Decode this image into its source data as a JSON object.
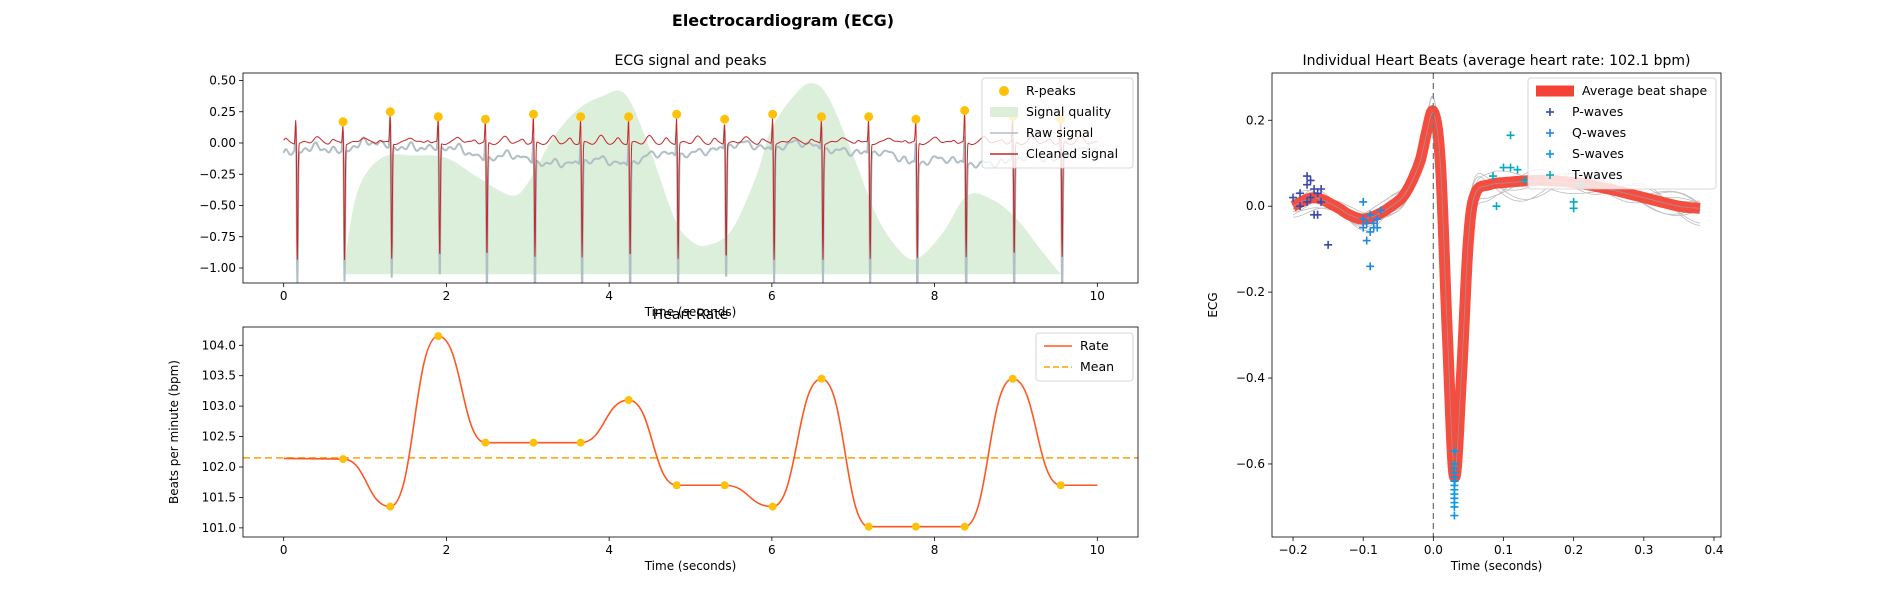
{
  "figure_title": "Electrocardiogram (ECG)",
  "colors": {
    "rpeak": "#FFC107",
    "quality": "#DCEFDB",
    "raw": "#B0BEC5",
    "cleaned": "#C62828",
    "rate": "#FF5722",
    "mean": "#FFA000",
    "avg_beat": "#F44336",
    "p_wave": "#3949AB",
    "q_wave": "#1E88E5",
    "s_wave": "#039BE5",
    "t_wave": "#00ACC1",
    "beat_trace": "#BDBDBD"
  },
  "chart_data": [
    {
      "id": "ecg",
      "type": "line",
      "title": "ECG signal and peaks",
      "xlabel": "Time (seconds)",
      "ylabel": "",
      "xlim": [
        -0.5,
        10.5
      ],
      "ylim": [
        -1.12,
        0.56
      ],
      "xticks": [
        0,
        2,
        4,
        6,
        8,
        10
      ],
      "yticks": [
        -1.0,
        -0.75,
        -0.5,
        -0.25,
        0.0,
        0.25,
        0.5
      ],
      "ytick_labels": [
        "−1.00",
        "−0.75",
        "−0.50",
        "−0.25",
        "0.00",
        "0.25",
        "0.50"
      ],
      "legend": [
        "R-peaks",
        "Signal quality",
        "Raw signal",
        "Cleaned signal"
      ],
      "legend_position": "upper right",
      "r_peak_times": [
        0.73,
        1.31,
        1.9,
        2.48,
        3.07,
        3.65,
        4.24,
        4.83,
        5.42,
        6.01,
        6.61,
        7.19,
        7.77,
        8.37,
        8.96,
        9.55
      ],
      "r_peak_amplitudes": [
        0.17,
        0.25,
        0.21,
        0.19,
        0.23,
        0.21,
        0.21,
        0.23,
        0.19,
        0.23,
        0.21,
        0.21,
        0.19,
        0.26,
        0.21,
        0.19
      ],
      "quality_curve": {
        "x": [
          0.73,
          0.9,
          1.2,
          1.6,
          2.0,
          2.4,
          2.8,
          3.0,
          3.3,
          3.6,
          3.9,
          4.2,
          4.5,
          4.8,
          5.0,
          5.2,
          5.5,
          5.8,
          6.0,
          6.3,
          6.5,
          6.7,
          7.0,
          7.3,
          7.6,
          7.8,
          8.1,
          8.4,
          8.7,
          9.0,
          9.3,
          9.55
        ],
        "y": [
          -1.05,
          -0.4,
          -0.12,
          -0.1,
          -0.12,
          -0.28,
          -0.42,
          -0.32,
          0.03,
          0.26,
          0.37,
          0.39,
          -0.05,
          -0.6,
          -0.78,
          -0.82,
          -0.7,
          -0.28,
          0.12,
          0.4,
          0.48,
          0.36,
          -0.1,
          -0.6,
          -0.88,
          -0.92,
          -0.72,
          -0.42,
          -0.45,
          -0.6,
          -0.85,
          -1.05
        ]
      }
    },
    {
      "id": "rate",
      "type": "line",
      "title": "Heart Rate",
      "xlabel": "Time (seconds)",
      "ylabel": "Beats per minute (bpm)",
      "xlim": [
        -0.5,
        10.5
      ],
      "ylim": [
        100.85,
        104.3
      ],
      "xticks": [
        0,
        2,
        4,
        6,
        8,
        10
      ],
      "yticks": [
        101.0,
        101.5,
        102.0,
        102.5,
        103.0,
        103.5,
        104.0
      ],
      "ytick_labels": [
        "101.0",
        "101.5",
        "102.0",
        "102.5",
        "103.0",
        "103.5",
        "104.0"
      ],
      "legend": [
        "Rate",
        "Mean"
      ],
      "legend_position": "upper right",
      "mean": 102.15,
      "start": {
        "x": 0,
        "y": 102.14
      },
      "end": {
        "x": 10,
        "y": 101.7
      },
      "points": {
        "x": [
          0.73,
          1.31,
          1.9,
          2.48,
          3.07,
          3.65,
          4.24,
          4.83,
          5.42,
          6.01,
          6.61,
          7.19,
          7.77,
          8.37,
          8.96,
          9.55
        ],
        "y": [
          102.13,
          101.35,
          104.15,
          102.4,
          102.4,
          102.4,
          103.1,
          101.7,
          101.7,
          101.35,
          103.45,
          101.02,
          101.02,
          101.02,
          103.45,
          101.7
        ]
      }
    },
    {
      "id": "beats",
      "type": "line",
      "title": "Individual Heart Beats (average heart rate: 102.1 bpm)",
      "xlabel": "Time (seconds)",
      "ylabel": "ECG",
      "xlim": [
        -0.23,
        0.41
      ],
      "ylim": [
        -0.77,
        0.31
      ],
      "xticks": [
        -0.2,
        -0.1,
        0.0,
        0.1,
        0.2,
        0.3,
        0.4
      ],
      "xtick_labels": [
        "−0.2",
        "−0.1",
        "0.0",
        "0.1",
        "0.2",
        "0.3",
        "0.4"
      ],
      "yticks": [
        -0.6,
        -0.4,
        -0.2,
        0.0,
        0.2
      ],
      "ytick_labels": [
        "−0.6",
        "−0.4",
        "−0.2",
        "0.0",
        "0.2"
      ],
      "legend": [
        "Average beat shape",
        "P-waves",
        "Q-waves",
        "S-waves",
        "T-waves"
      ],
      "legend_position": "upper right",
      "average_beat": {
        "x": [
          -0.2,
          -0.17,
          -0.14,
          -0.12,
          -0.1,
          -0.08,
          -0.06,
          -0.04,
          -0.02,
          -0.01,
          0.0,
          0.01,
          0.02,
          0.03,
          0.04,
          0.05,
          0.06,
          0.08,
          0.1,
          0.15,
          0.2,
          0.25,
          0.3,
          0.35,
          0.38
        ],
        "y": [
          0.0,
          0.02,
          0.0,
          -0.02,
          -0.03,
          -0.02,
          0.0,
          0.03,
          0.1,
          0.17,
          0.22,
          0.1,
          -0.3,
          -0.63,
          -0.4,
          -0.08,
          0.03,
          0.05,
          0.055,
          0.06,
          0.055,
          0.04,
          0.02,
          0.0,
          -0.005
        ]
      },
      "p_waves": {
        "x": [
          -0.2,
          -0.19,
          -0.18,
          -0.18,
          -0.175,
          -0.17,
          -0.165,
          -0.17,
          -0.18,
          -0.16,
          -0.19,
          -0.175,
          -0.15,
          -0.16,
          -0.165
        ],
        "y": [
          0.02,
          0.03,
          0.05,
          0.07,
          0.06,
          0.04,
          0.03,
          -0.02,
          0.01,
          0.01,
          0.0,
          0.02,
          -0.09,
          0.04,
          -0.02
        ]
      },
      "q_waves": {
        "x": [
          -0.1,
          -0.09,
          -0.095,
          -0.085,
          -0.08,
          -0.09,
          -0.1,
          -0.095,
          -0.08,
          -0.085,
          -0.1,
          -0.09,
          -0.075
        ],
        "y": [
          -0.03,
          -0.02,
          -0.04,
          -0.05,
          -0.03,
          -0.14,
          0.01,
          -0.08,
          -0.05,
          -0.04,
          -0.05,
          -0.06,
          -0.01
        ]
      },
      "s_waves": {
        "x": [
          0.03,
          0.03,
          0.03,
          0.03,
          0.03,
          0.03,
          0.03,
          0.03,
          0.03,
          0.03,
          0.03,
          0.03,
          0.03,
          0.03
        ],
        "y": [
          -0.57,
          -0.6,
          -0.62,
          -0.63,
          -0.64,
          -0.65,
          -0.66,
          -0.67,
          -0.68,
          -0.69,
          -0.7,
          -0.72,
          -0.61,
          -0.64
        ]
      },
      "t_waves": {
        "x": [
          0.1,
          0.11,
          0.12,
          0.085,
          0.09,
          0.2,
          0.2,
          0.11,
          0.21,
          0.13
        ],
        "y": [
          0.09,
          0.09,
          0.085,
          0.07,
          0.0,
          0.01,
          -0.005,
          0.165,
          0.05,
          0.06
        ]
      }
    }
  ]
}
